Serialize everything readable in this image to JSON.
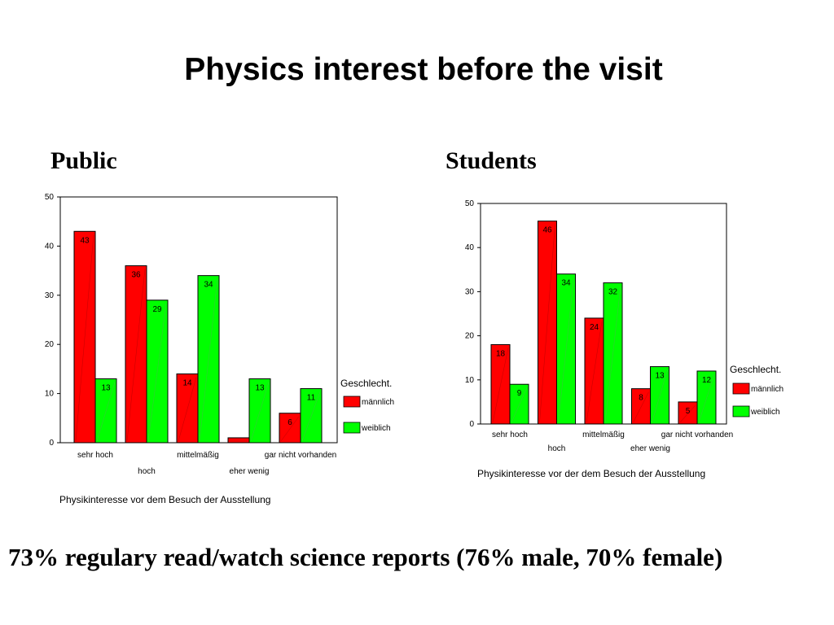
{
  "slide": {
    "title": "Physics interest before the visit",
    "footer": "73% regulary read/watch science reports (76% male, 70% female)"
  },
  "panels": {
    "public": {
      "heading": "Public"
    },
    "students": {
      "heading": "Students"
    }
  },
  "colors": {
    "male": "#ff0000",
    "female": "#00ff00"
  },
  "chart_data": [
    {
      "type": "bar",
      "panel": "Public",
      "categories": [
        "sehr hoch",
        "hoch",
        "mittelmäßig",
        "eher wenig",
        "gar nicht vorhanden"
      ],
      "series": [
        {
          "name": "männlich",
          "color": "#ff0000",
          "values": [
            43,
            36,
            14,
            1,
            6
          ],
          "labels": [
            "43",
            "36",
            "14",
            "",
            "6"
          ]
        },
        {
          "name": "weiblich",
          "color": "#00ff00",
          "values": [
            13,
            29,
            34,
            13,
            11
          ],
          "labels": [
            "13",
            "29",
            "34",
            "13",
            "11"
          ]
        }
      ],
      "xlabel": "Physikinteresse vor dem Besuch der Ausstellung",
      "ylabel": "",
      "ylim": [
        0,
        50
      ],
      "yticks": [
        "0",
        "10",
        "20",
        "30",
        "40",
        "50"
      ],
      "legend_title": "Geschlecht.",
      "legend_position": "right",
      "grid": false
    },
    {
      "type": "bar",
      "panel": "Students",
      "categories": [
        "sehr hoch",
        "hoch",
        "mittelmäßig",
        "eher wenig",
        "gar nicht vorhanden"
      ],
      "series": [
        {
          "name": "männlich",
          "color": "#ff0000",
          "values": [
            18,
            46,
            24,
            8,
            5
          ],
          "labels": [
            "18",
            "46",
            "24",
            "8",
            "5"
          ]
        },
        {
          "name": "weiblich",
          "color": "#00ff00",
          "values": [
            9,
            34,
            32,
            13,
            12
          ],
          "labels": [
            "9",
            "34",
            "32",
            "13",
            "12"
          ]
        }
      ],
      "xlabel": "Physikinteresse vor der dem Besuch der Ausstellung",
      "ylabel": "",
      "ylim": [
        0,
        50
      ],
      "yticks": [
        "0",
        "10",
        "20",
        "30",
        "40",
        "50"
      ],
      "legend_title": "Geschlecht.",
      "legend_position": "right",
      "grid": false
    }
  ]
}
